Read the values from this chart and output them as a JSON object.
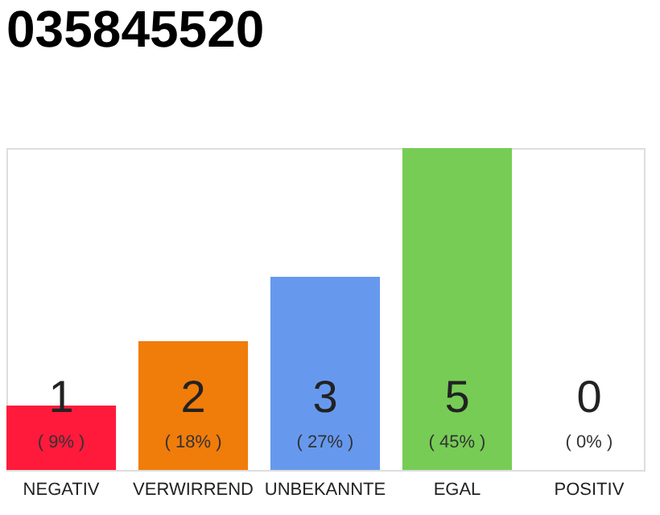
{
  "chart_data": {
    "type": "bar",
    "title": "035845520",
    "categories": [
      "NEGATIV",
      "VERWIRREND",
      "UNBEKANNTE",
      "EGAL",
      "POSITIV"
    ],
    "series": [
      {
        "colors": [
          "#ff1a3c",
          "#f07c0a",
          "#6699ee",
          "#77cc55",
          "#aaaaaa"
        ],
        "values": [
          1,
          2,
          3,
          5,
          0
        ]
      }
    ],
    "data_labels": true,
    "annotations": [
      "( 9% )",
      "( 18% )",
      "( 27% )",
      "( 45% )",
      "( 0% )"
    ],
    "tick_labels": "x"
  }
}
